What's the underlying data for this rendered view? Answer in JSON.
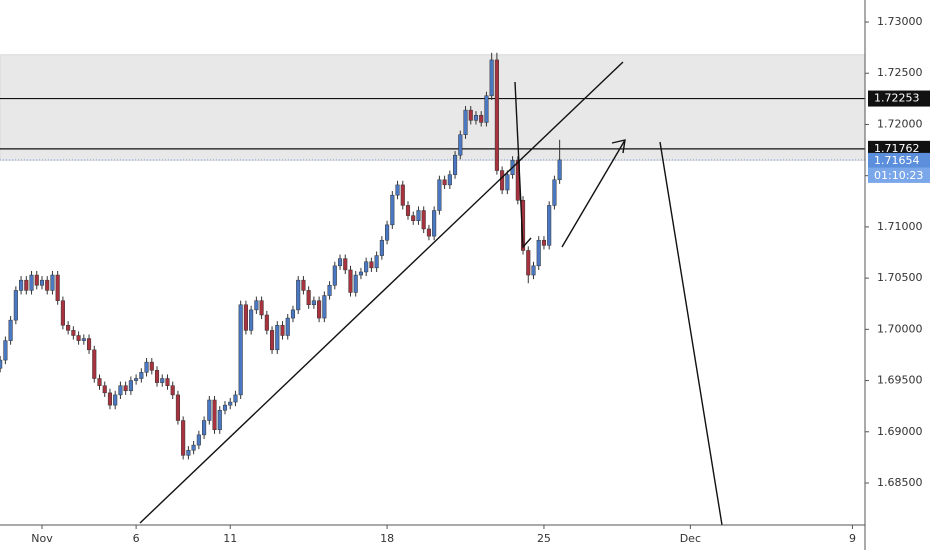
{
  "chart_data": {
    "type": "candlestick",
    "x": [
      -8,
      -7,
      -6,
      -5,
      -4,
      -3,
      -2,
      -1,
      0,
      1,
      2,
      3,
      4,
      5,
      6,
      7,
      8,
      9,
      10,
      11,
      12,
      13,
      14,
      15,
      16,
      17,
      18,
      19,
      20,
      21,
      22,
      23,
      24,
      25,
      26,
      27,
      28,
      29,
      30,
      31,
      32,
      33,
      34,
      35,
      36,
      37,
      38,
      39,
      40,
      41,
      42,
      43,
      44,
      45,
      46,
      47,
      48,
      49,
      50,
      51,
      52,
      53,
      54,
      55,
      56,
      57,
      58,
      59,
      60,
      61,
      62,
      63,
      64,
      65,
      66,
      67,
      68,
      69,
      70,
      71,
      72,
      73,
      74,
      75,
      76,
      77,
      78,
      79,
      80,
      81,
      82,
      83,
      84,
      85,
      86,
      87,
      88,
      89,
      90,
      91,
      92,
      93,
      94,
      95,
      96,
      97,
      98,
      99
    ],
    "open": [
      1.6962,
      1.697,
      1.6989,
      1.7009,
      1.7038,
      1.7048,
      1.7038,
      1.7053,
      1.7043,
      1.7048,
      1.7038,
      1.7053,
      1.7028,
      1.7004,
      1.6999,
      1.6994,
      1.6989,
      1.6991,
      1.698,
      1.6952,
      1.6945,
      1.6938,
      1.6926,
      1.6936,
      1.6945,
      1.694,
      1.695,
      1.6952,
      1.6958,
      1.6968,
      1.696,
      1.6948,
      1.6952,
      1.6945,
      1.6936,
      1.6911,
      1.6877,
      1.6882,
      1.6887,
      1.6897,
      1.6911,
      1.6931,
      1.6902,
      1.6921,
      1.6926,
      1.6929,
      1.6936,
      1.7024,
      1.6999,
      1.7019,
      1.7028,
      1.7014,
      1.6999,
      1.698,
      1.7004,
      1.6994,
      1.7011,
      1.7019,
      1.7048,
      1.7038,
      1.7024,
      1.7028,
      1.7011,
      1.7033,
      1.7043,
      1.7062,
      1.7069,
      1.7058,
      1.7036,
      1.7053,
      1.7056,
      1.7066,
      1.706,
      1.7072,
      1.7087,
      1.7102,
      1.7131,
      1.7141,
      1.7121,
      1.7111,
      1.7106,
      1.7116,
      1.7098,
      1.7091,
      1.7116,
      1.7146,
      1.7141,
      1.7151,
      1.717,
      1.719,
      1.7214,
      1.7204,
      1.7209,
      1.7202,
      1.7228,
      1.7263,
      1.7155,
      1.7136,
      1.7151,
      1.7165,
      1.7126,
      1.7077,
      1.7053,
      1.7062,
      1.7087,
      1.7082,
      1.7121,
      1.7146
    ],
    "high": [
      1.6974,
      1.6993,
      1.7013,
      1.7042,
      1.7052,
      1.7052,
      1.7057,
      1.7057,
      1.7052,
      1.7052,
      1.7057,
      1.7057,
      1.7032,
      1.7008,
      1.7003,
      1.6998,
      1.6995,
      1.6995,
      1.6984,
      1.6956,
      1.6949,
      1.6942,
      1.694,
      1.6949,
      1.6949,
      1.6954,
      1.6956,
      1.6962,
      1.6972,
      1.6972,
      1.6964,
      1.6956,
      1.6956,
      1.6949,
      1.694,
      1.6915,
      1.6886,
      1.6891,
      1.6901,
      1.6915,
      1.6935,
      1.6935,
      1.6925,
      1.693,
      1.6933,
      1.694,
      1.7028,
      1.7028,
      1.7023,
      1.7032,
      1.7032,
      1.7018,
      1.7003,
      1.7008,
      1.7008,
      1.7015,
      1.7023,
      1.7052,
      1.7052,
      1.7042,
      1.7032,
      1.7032,
      1.7037,
      1.7047,
      1.7066,
      1.7073,
      1.7073,
      1.7062,
      1.7057,
      1.706,
      1.707,
      1.707,
      1.7076,
      1.7091,
      1.7106,
      1.7135,
      1.7145,
      1.7145,
      1.7125,
      1.7115,
      1.712,
      1.712,
      1.7102,
      1.712,
      1.715,
      1.715,
      1.7155,
      1.7174,
      1.7194,
      1.7218,
      1.7218,
      1.7213,
      1.7213,
      1.7232,
      1.727,
      1.727,
      1.7159,
      1.7155,
      1.7169,
      1.7169,
      1.713,
      1.7081,
      1.7066,
      1.7091,
      1.7091,
      1.7125,
      1.715,
      1.7185
    ],
    "low": [
      1.6958,
      1.6966,
      1.6985,
      1.7005,
      1.7034,
      1.7034,
      1.7034,
      1.7039,
      1.7039,
      1.7034,
      1.7034,
      1.7024,
      1.7,
      1.6995,
      1.699,
      1.6985,
      1.6985,
      1.6976,
      1.6948,
      1.6941,
      1.6934,
      1.6922,
      1.6922,
      1.6932,
      1.6936,
      1.6936,
      1.6946,
      1.6948,
      1.6954,
      1.6956,
      1.6944,
      1.6944,
      1.6941,
      1.6932,
      1.6907,
      1.6873,
      1.6873,
      1.6878,
      1.6883,
      1.6893,
      1.6907,
      1.6898,
      1.6898,
      1.6917,
      1.6922,
      1.6925,
      1.6932,
      1.6995,
      1.6995,
      1.7015,
      1.701,
      1.6995,
      1.6976,
      1.6976,
      1.699,
      1.699,
      1.7007,
      1.7015,
      1.7034,
      1.702,
      1.702,
      1.7007,
      1.7007,
      1.7029,
      1.7039,
      1.7058,
      1.7054,
      1.7032,
      1.7032,
      1.7049,
      1.7052,
      1.7056,
      1.7056,
      1.7068,
      1.7083,
      1.7098,
      1.7127,
      1.7117,
      1.7107,
      1.7102,
      1.7102,
      1.7094,
      1.7087,
      1.7087,
      1.7112,
      1.7137,
      1.7137,
      1.7147,
      1.7166,
      1.7186,
      1.72,
      1.72,
      1.7198,
      1.7198,
      1.7224,
      1.7151,
      1.7132,
      1.7132,
      1.7147,
      1.7122,
      1.7073,
      1.7045,
      1.7049,
      1.7058,
      1.7078,
      1.7078,
      1.7117,
      1.7142
    ],
    "close": [
      1.697,
      1.6989,
      1.7009,
      1.7038,
      1.7048,
      1.7038,
      1.7053,
      1.7043,
      1.7048,
      1.7038,
      1.7053,
      1.7028,
      1.7004,
      1.6999,
      1.6994,
      1.6989,
      1.6991,
      1.698,
      1.6952,
      1.6945,
      1.6938,
      1.6926,
      1.6936,
      1.6945,
      1.694,
      1.695,
      1.6952,
      1.6958,
      1.6968,
      1.696,
      1.6948,
      1.6952,
      1.6945,
      1.6936,
      1.6911,
      1.6877,
      1.6882,
      1.6887,
      1.6897,
      1.6911,
      1.6931,
      1.6902,
      1.6921,
      1.6926,
      1.6929,
      1.6936,
      1.7024,
      1.6999,
      1.7019,
      1.7028,
      1.7014,
      1.6999,
      1.698,
      1.7004,
      1.6994,
      1.7011,
      1.7019,
      1.7048,
      1.7038,
      1.7024,
      1.7028,
      1.7011,
      1.7033,
      1.7043,
      1.7062,
      1.7069,
      1.7058,
      1.7036,
      1.7053,
      1.7056,
      1.7066,
      1.706,
      1.7072,
      1.7087,
      1.7102,
      1.7131,
      1.7141,
      1.7121,
      1.7111,
      1.7106,
      1.7116,
      1.7098,
      1.7091,
      1.7116,
      1.7146,
      1.7141,
      1.7151,
      1.717,
      1.719,
      1.7214,
      1.7204,
      1.7209,
      1.7202,
      1.7228,
      1.7263,
      1.7155,
      1.7136,
      1.7151,
      1.7165,
      1.7126,
      1.7077,
      1.7053,
      1.7062,
      1.7087,
      1.7082,
      1.7121,
      1.7146,
      1.71654
    ],
    "up_color": "#4a78c2",
    "down_color": "#a8323e",
    "wick_color": "#333333",
    "xlim": [
      -8.03,
      157.4
    ],
    "xticks": [
      {
        "value": 0,
        "label": "Nov"
      },
      {
        "value": 18,
        "label": "6"
      },
      {
        "value": 36,
        "label": "11"
      },
      {
        "value": 66,
        "label": "18"
      },
      {
        "value": 96,
        "label": "25"
      },
      {
        "value": 124,
        "label": "Dec"
      },
      {
        "value": 155,
        "label": "9"
      }
    ],
    "ylim": [
      1.6809,
      1.73215
    ],
    "yticks": [
      {
        "value": 1.685,
        "label": "1.68500"
      },
      {
        "value": 1.69,
        "label": "1.69000"
      },
      {
        "value": 1.695,
        "label": "1.69500"
      },
      {
        "value": 1.7,
        "label": "1.70000"
      },
      {
        "value": 1.705,
        "label": "1.70500"
      },
      {
        "value": 1.71,
        "label": "1.71000"
      },
      {
        "value": 1.715,
        "label": "1.71500"
      },
      {
        "value": 1.72,
        "label": "1.72000"
      },
      {
        "value": 1.725,
        "label": "1.72500"
      },
      {
        "value": 1.73,
        "label": "1.73000"
      }
    ],
    "zone": [
      1.7165,
      1.7268
    ],
    "levels": [
      1.72253,
      1.71762
    ],
    "countdown": "01:10:23"
  }
}
